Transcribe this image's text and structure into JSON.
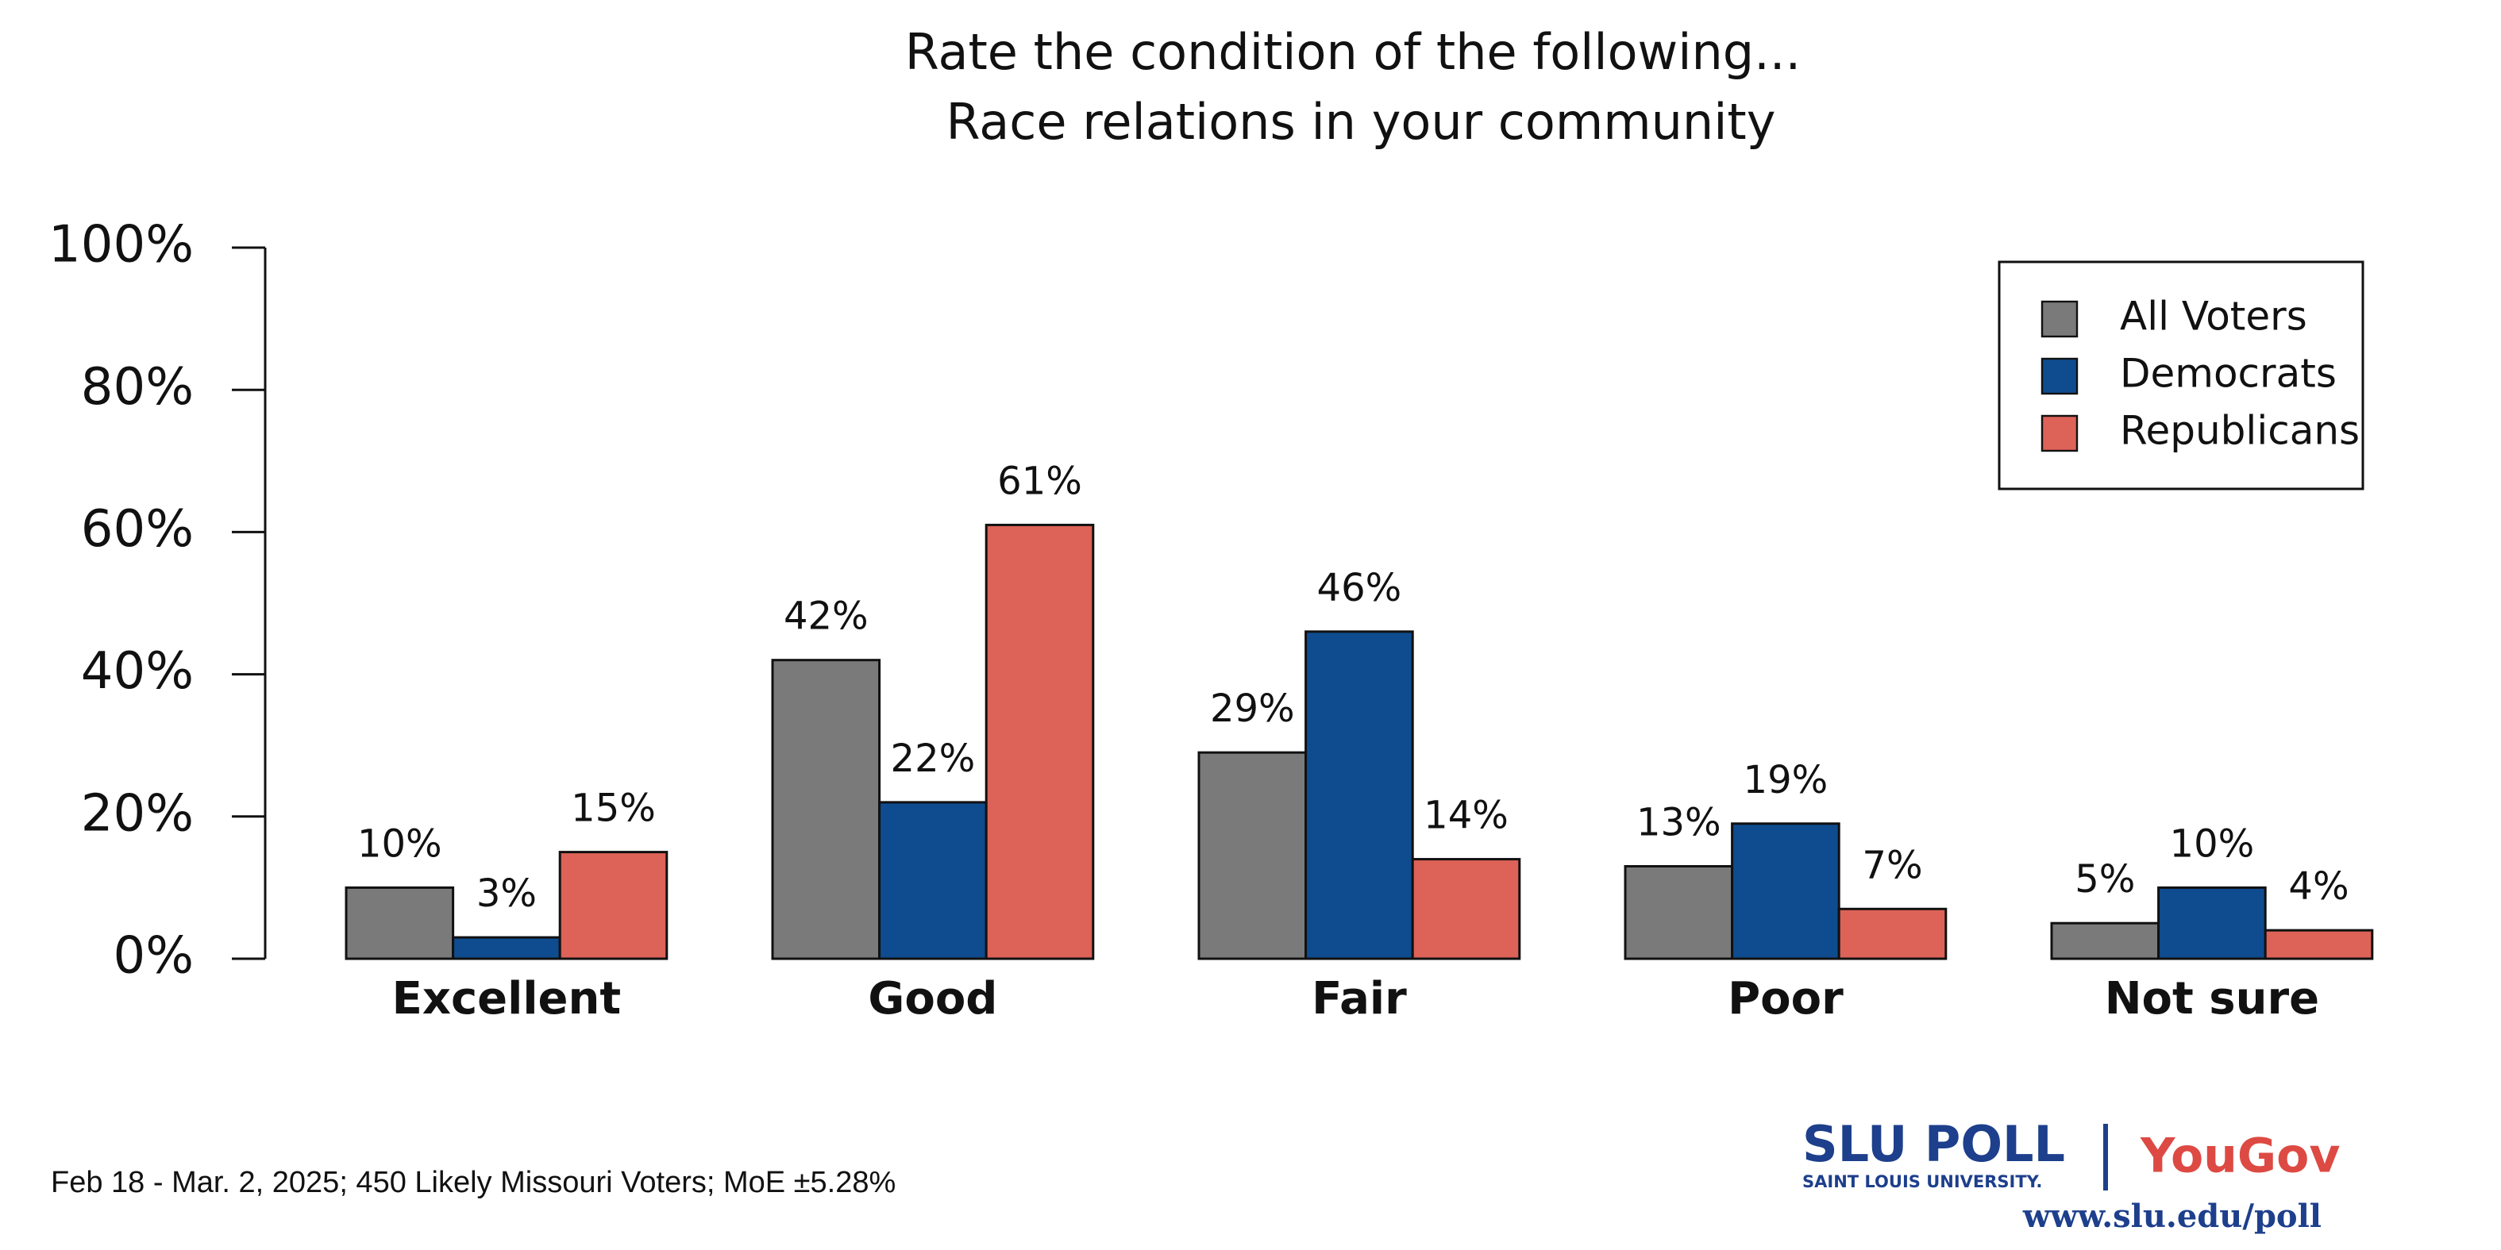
{
  "chart_data": {
    "type": "bar",
    "title": [
      "Rate the condition of the following...",
      "Race relations in your community"
    ],
    "categories": [
      "Excellent",
      "Good",
      "Fair",
      "Poor",
      "Not sure"
    ],
    "series": [
      {
        "name": "All Voters",
        "color": "#7a7a7a",
        "values": [
          10,
          42,
          29,
          13,
          5
        ],
        "value_labels": [
          "10%",
          "42%",
          "29%",
          "13%",
          "5%"
        ]
      },
      {
        "name": "Democrats",
        "color": "#0f4c8f",
        "values": [
          3,
          22,
          46,
          19,
          10
        ],
        "value_labels": [
          "3%",
          "22%",
          "46%",
          "19%",
          "10%"
        ]
      },
      {
        "name": "Republicans",
        "color": "#dd6257",
        "values": [
          15,
          61,
          14,
          7,
          4
        ],
        "value_labels": [
          "15%",
          "61%",
          "14%",
          "7%",
          "4%"
        ]
      }
    ],
    "ylim": [
      0,
      100
    ],
    "yticks": [
      {
        "value": 0,
        "label": "0%"
      },
      {
        "value": 20,
        "label": "20%"
      },
      {
        "value": 40,
        "label": "40%"
      },
      {
        "value": 60,
        "label": "60%"
      },
      {
        "value": 80,
        "label": "80%"
      },
      {
        "value": 100,
        "label": "100%"
      }
    ],
    "legend_position": "upper right",
    "note": "Feb 18 - Mar. 2, 2025; 450 Likely Missouri Voters; MoE ±5.28%",
    "branding": {
      "poll": "SLU POLL",
      "university": "SAINT LOUIS UNIVERSITY.",
      "partner": "YouGov",
      "url": "www.slu.edu/poll"
    }
  }
}
